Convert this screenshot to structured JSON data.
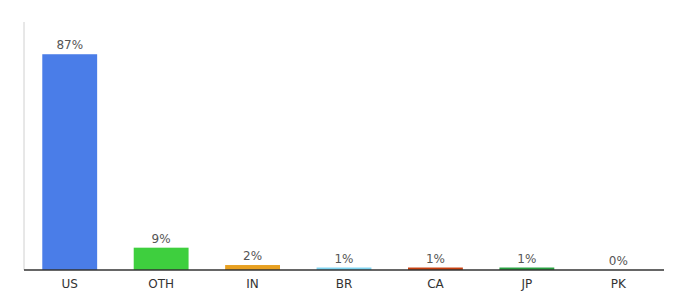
{
  "chart_data": {
    "type": "bar",
    "categories": [
      "US",
      "OTH",
      "IN",
      "BR",
      "CA",
      "JP",
      "PK"
    ],
    "values": [
      87,
      9,
      2,
      1,
      1,
      1,
      0
    ],
    "value_labels": [
      "87%",
      "9%",
      "2%",
      "1%",
      "1%",
      "1%",
      "0%"
    ],
    "colors": [
      "#4a7de8",
      "#3ecf3e",
      "#e8a020",
      "#7fd4f0",
      "#c84010",
      "#28a040",
      "#cccccc"
    ],
    "ylim": [
      0,
      100
    ],
    "data_labels": true,
    "tick_labels": "x",
    "grid": false
  }
}
